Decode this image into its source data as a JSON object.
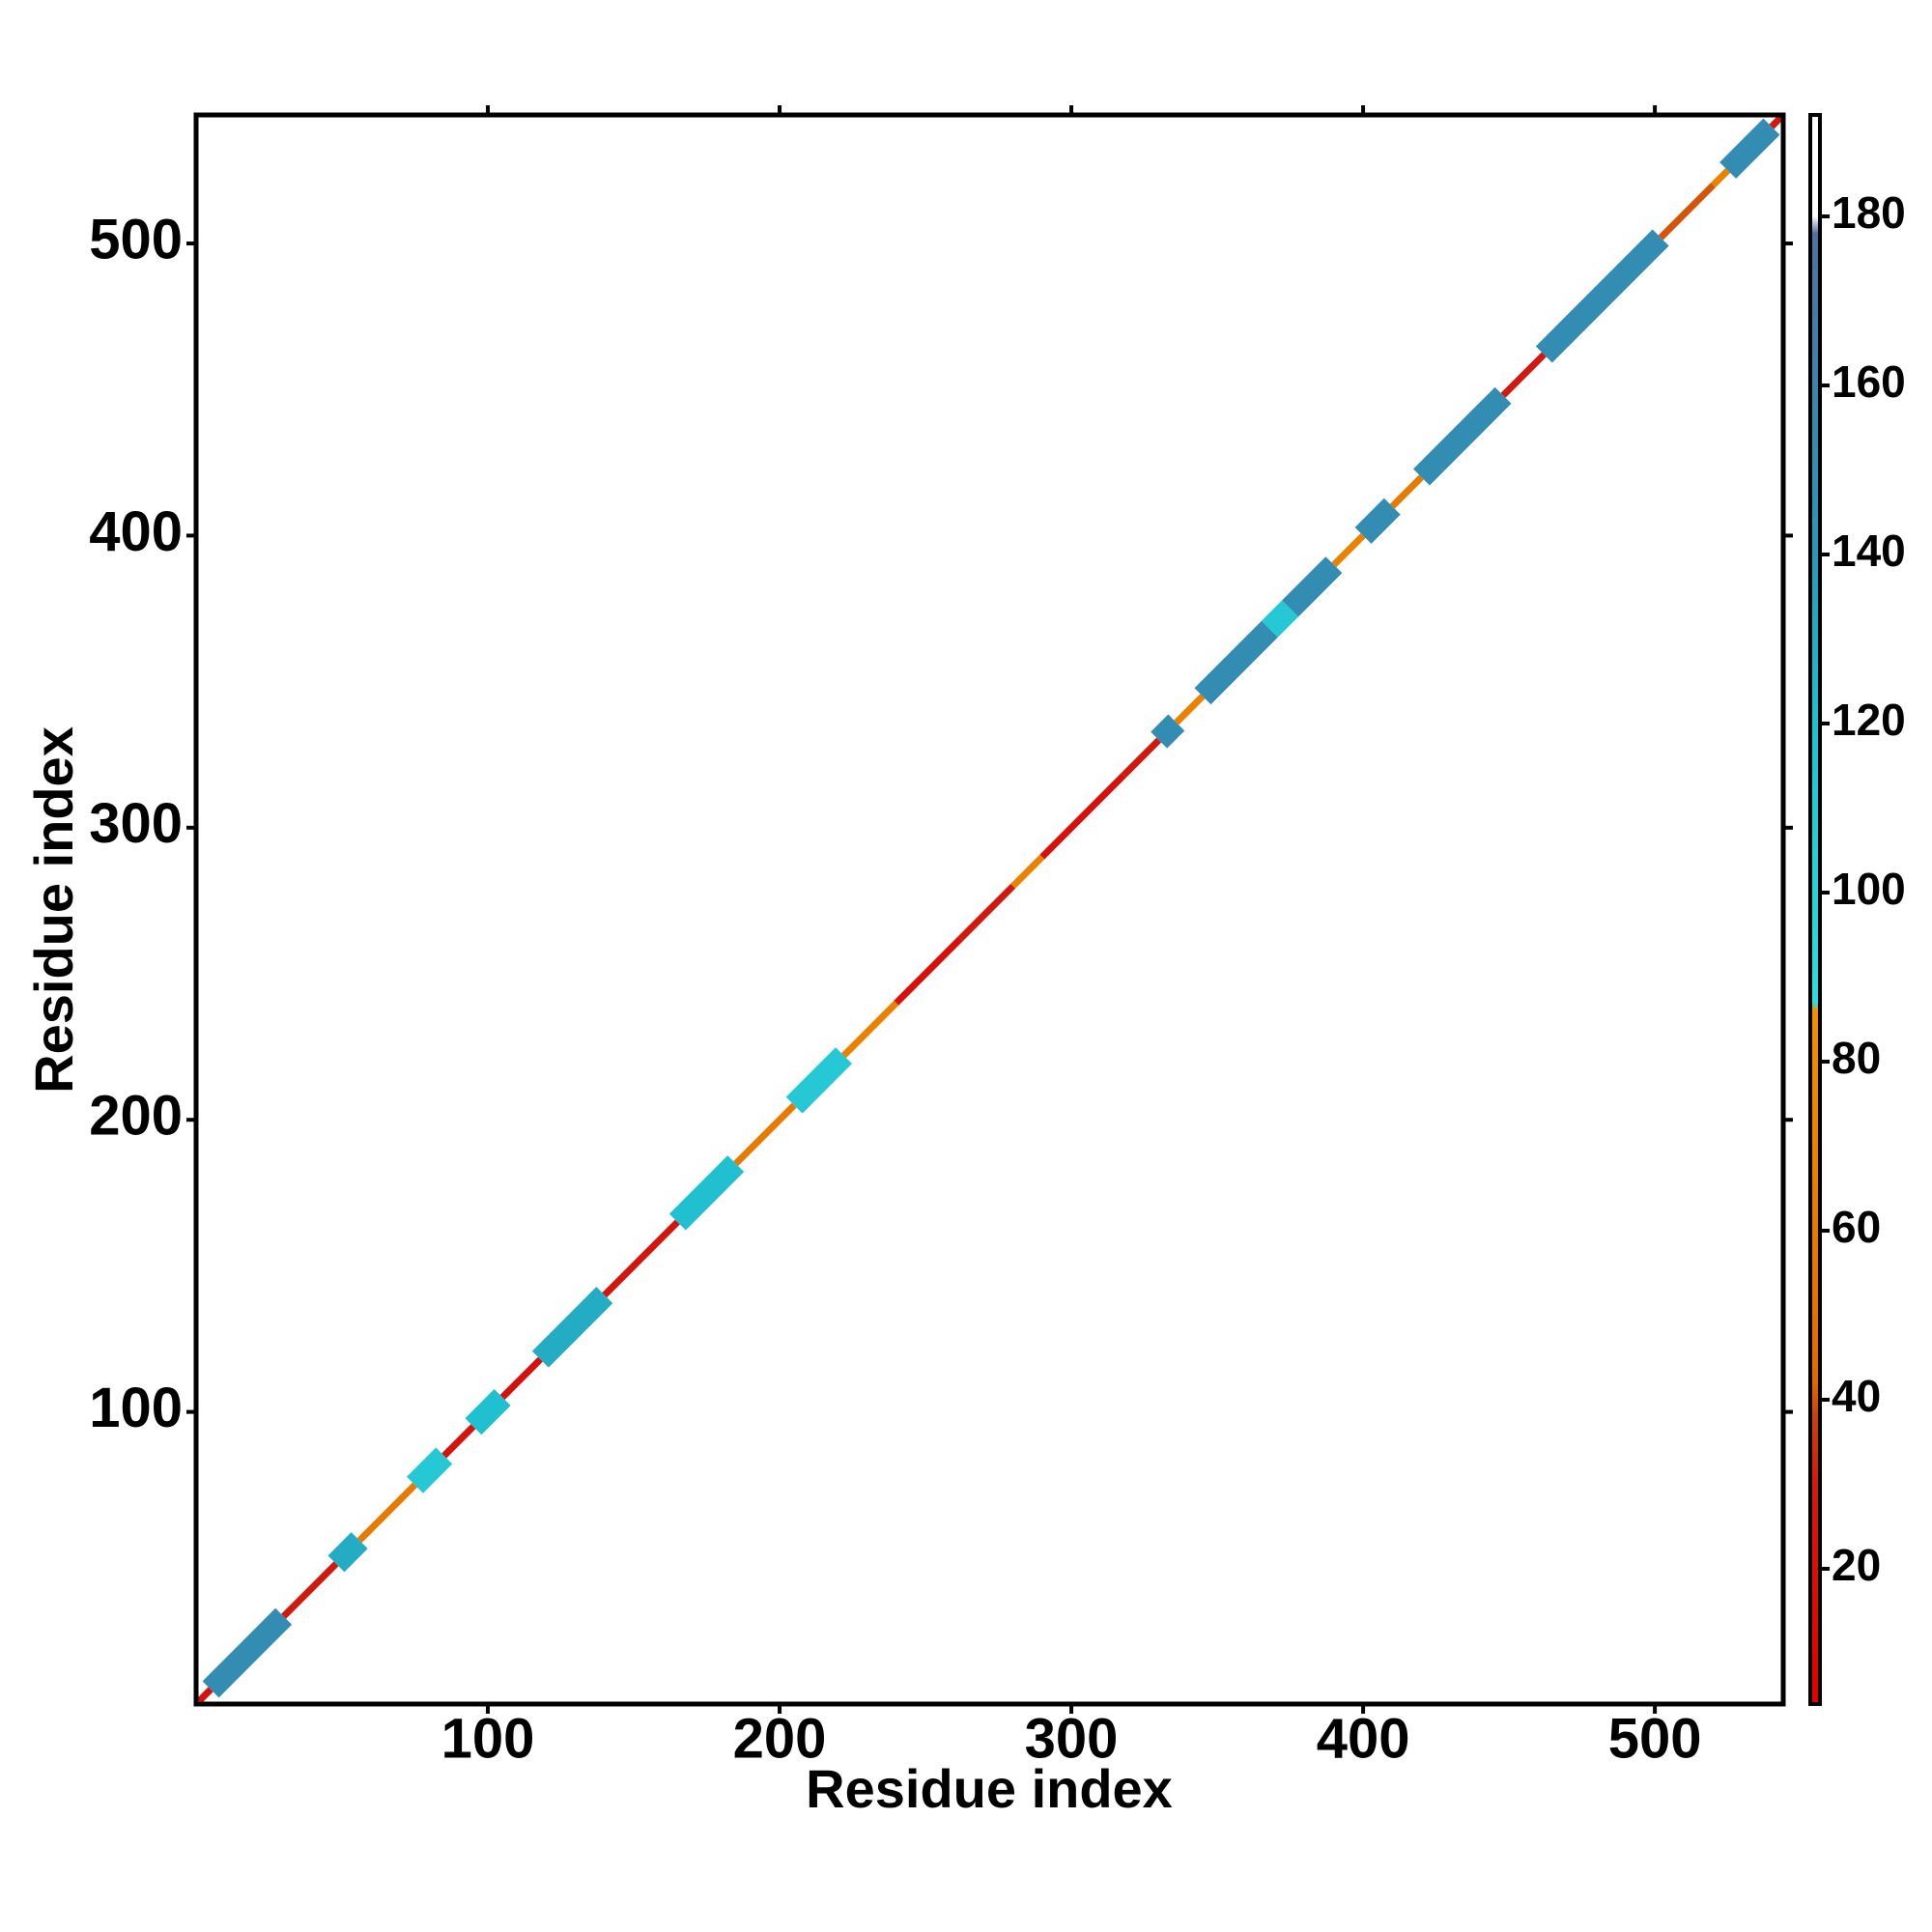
{
  "chart_data": {
    "type": "heatmap",
    "x_label": "Residue index",
    "y_label": "Residue index",
    "xlim": [
      0,
      544
    ],
    "ylim": [
      0,
      544
    ],
    "xticks": [
      100,
      200,
      300,
      400,
      500
    ],
    "yticks": [
      100,
      200,
      300,
      400,
      500
    ],
    "clim": [
      4,
      192
    ],
    "cticks": [
      20,
      40,
      60,
      80,
      100,
      120,
      140,
      160,
      180
    ],
    "colormap": [
      {
        "value": 4,
        "color": "#e00000"
      },
      {
        "value": 30,
        "color": "#d01a10"
      },
      {
        "value": 38,
        "color": "#c84010"
      },
      {
        "value": 42,
        "color": "#e06a00"
      },
      {
        "value": 86,
        "color": "#f09000"
      },
      {
        "value": 87,
        "color": "#30dcdc"
      },
      {
        "value": 120,
        "color": "#20c0d0"
      },
      {
        "value": 140,
        "color": "#2898b8"
      },
      {
        "value": 178,
        "color": "#5070a0"
      },
      {
        "value": 180,
        "color": "#ffffff"
      },
      {
        "value": 192,
        "color": "#ffffff"
      }
    ],
    "segments": [
      {
        "start": 1,
        "end": 5,
        "value": 20
      },
      {
        "start": 5,
        "end": 30,
        "value": 150
      },
      {
        "start": 30,
        "end": 48,
        "value": 30
      },
      {
        "start": 48,
        "end": 56,
        "value": 130
      },
      {
        "start": 56,
        "end": 75,
        "value": 60
      },
      {
        "start": 75,
        "end": 85,
        "value": 110
      },
      {
        "start": 85,
        "end": 95,
        "value": 25
      },
      {
        "start": 95,
        "end": 105,
        "value": 120
      },
      {
        "start": 105,
        "end": 118,
        "value": 20
      },
      {
        "start": 118,
        "end": 140,
        "value": 130
      },
      {
        "start": 140,
        "end": 165,
        "value": 25
      },
      {
        "start": 165,
        "end": 185,
        "value": 120
      },
      {
        "start": 185,
        "end": 205,
        "value": 60
      },
      {
        "start": 205,
        "end": 222,
        "value": 110
      },
      {
        "start": 222,
        "end": 240,
        "value": 70
      },
      {
        "start": 240,
        "end": 262,
        "value": 20
      },
      {
        "start": 262,
        "end": 280,
        "value": 30
      },
      {
        "start": 280,
        "end": 290,
        "value": 70
      },
      {
        "start": 290,
        "end": 318,
        "value": 20
      },
      {
        "start": 318,
        "end": 330,
        "value": 30
      },
      {
        "start": 330,
        "end": 336,
        "value": 150
      },
      {
        "start": 336,
        "end": 345,
        "value": 70
      },
      {
        "start": 345,
        "end": 368,
        "value": 150
      },
      {
        "start": 368,
        "end": 375,
        "value": 110
      },
      {
        "start": 375,
        "end": 390,
        "value": 150
      },
      {
        "start": 390,
        "end": 400,
        "value": 70
      },
      {
        "start": 400,
        "end": 410,
        "value": 150
      },
      {
        "start": 410,
        "end": 420,
        "value": 60
      },
      {
        "start": 420,
        "end": 448,
        "value": 150
      },
      {
        "start": 448,
        "end": 462,
        "value": 30
      },
      {
        "start": 462,
        "end": 502,
        "value": 150
      },
      {
        "start": 502,
        "end": 520,
        "value": 40
      },
      {
        "start": 520,
        "end": 525,
        "value": 70
      },
      {
        "start": 525,
        "end": 540,
        "value": 150
      },
      {
        "start": 540,
        "end": 544,
        "value": 30
      }
    ]
  }
}
